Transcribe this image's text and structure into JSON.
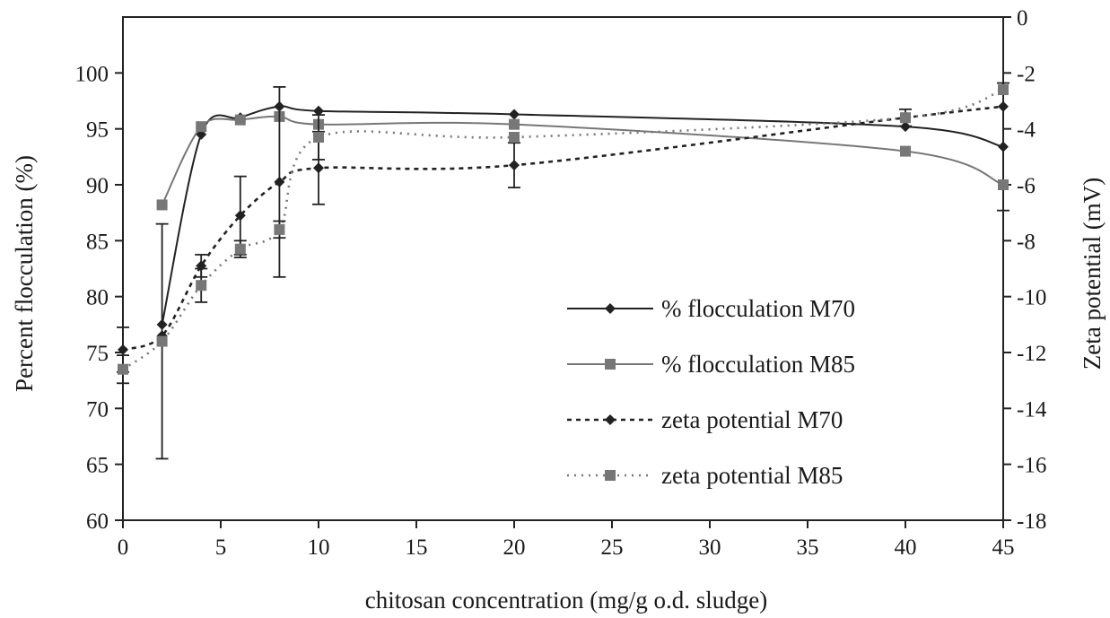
{
  "chart_data": {
    "type": "line",
    "xlabel": "chitosan concentration (mg/g o.d. sludge)",
    "ylabel": "Percent flocculation (%)",
    "y2label": "Zeta potential (mV)",
    "xlim": [
      0,
      45
    ],
    "ylim": [
      60,
      105
    ],
    "y2lim": [
      -18,
      0
    ],
    "xticks": [
      0,
      5,
      10,
      15,
      20,
      25,
      30,
      35,
      40,
      45
    ],
    "yticks": [
      60,
      65,
      70,
      75,
      80,
      85,
      90,
      95,
      100
    ],
    "y2ticks": [
      -18,
      -16,
      -14,
      -12,
      -10,
      -8,
      -6,
      -4,
      -2,
      0
    ],
    "legend_position": "right-center",
    "series": [
      {
        "name": "% flocculation M70",
        "axis": "left",
        "style": "solid",
        "marker": "diamond",
        "color": "#222222",
        "points": [
          {
            "x": 2,
            "y": 77.5
          },
          {
            "x": 4,
            "y": 94.5
          },
          {
            "x": 6,
            "y": 96
          },
          {
            "x": 8,
            "y": 97
          },
          {
            "x": 10,
            "y": 96.6
          },
          {
            "x": 20,
            "y": 96.3
          },
          {
            "x": 40,
            "y": 95.2
          },
          {
            "x": 45,
            "y": 93.4,
            "err": 5.7
          }
        ]
      },
      {
        "name": "% flocculation M85",
        "axis": "left",
        "style": "solid",
        "marker": "square",
        "color": "#777777",
        "points": [
          {
            "x": 2,
            "y": 88.2
          },
          {
            "x": 4,
            "y": 95.2
          },
          {
            "x": 6,
            "y": 95.8
          },
          {
            "x": 8,
            "y": 96.1
          },
          {
            "x": 10,
            "y": 95.4
          },
          {
            "x": 20,
            "y": 95.4
          },
          {
            "x": 40,
            "y": 93
          },
          {
            "x": 45,
            "y": 90
          }
        ]
      },
      {
        "name": "zeta potential M70",
        "axis": "right",
        "style": "dashed",
        "marker": "diamond",
        "color": "#222222",
        "points": [
          {
            "x": 0,
            "y": -11.9,
            "err": 0.8
          },
          {
            "x": 2,
            "y": -11.4
          },
          {
            "x": 4,
            "y": -8.9,
            "err": 0.4
          },
          {
            "x": 6,
            "y": -7.1,
            "err": 1.4
          },
          {
            "x": 8,
            "y": -5.9,
            "err": 3.4
          },
          {
            "x": 10,
            "y": -5.4,
            "err": 1.3
          },
          {
            "x": 20,
            "y": -5.3,
            "err": 0.8
          },
          {
            "x": 40,
            "y": -3.6,
            "err": 0.3
          },
          {
            "x": 45,
            "y": -3.2
          }
        ]
      },
      {
        "name": "zeta potential M85",
        "axis": "right",
        "style": "dotted",
        "marker": "square",
        "color": "#777777",
        "points": [
          {
            "x": 0,
            "y": -12.6,
            "err": 0.5
          },
          {
            "x": 2,
            "y": -11.6,
            "err": 4.2
          },
          {
            "x": 4,
            "y": -9.6,
            "err": 0.6
          },
          {
            "x": 6,
            "y": -8.3,
            "err": 0.3
          },
          {
            "x": 8,
            "y": -7.6,
            "err": 0.3
          },
          {
            "x": 10,
            "y": -4.3,
            "err": 0.8
          },
          {
            "x": 20,
            "y": -4.3
          },
          {
            "x": 40,
            "y": -3.6
          },
          {
            "x": 45,
            "y": -2.6
          }
        ]
      }
    ]
  }
}
